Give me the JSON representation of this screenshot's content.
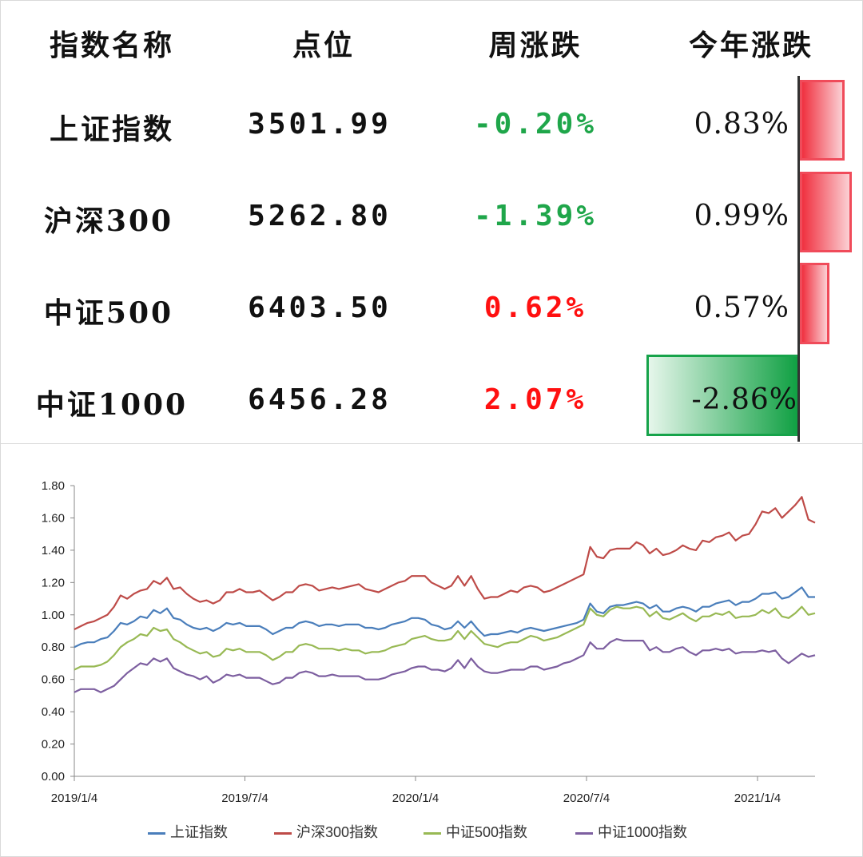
{
  "table": {
    "headers": [
      "指数名称",
      "点位",
      "周涨跌",
      "今年涨跌"
    ],
    "rows": [
      {
        "name": "上证指数",
        "level": "3501.99",
        "week": "-0.20%",
        "week_dir": "neg",
        "ytd": "0.83%",
        "ytd_value": 0.83
      },
      {
        "name": "沪深300",
        "level": "5262.80",
        "week": "-1.39%",
        "week_dir": "neg",
        "ytd": "0.99%",
        "ytd_value": 0.99
      },
      {
        "name": "中证500",
        "level": "6403.50",
        "week": "0.62%",
        "week_dir": "pos",
        "ytd": "0.57%",
        "ytd_value": 0.57
      },
      {
        "name": "中证1000",
        "level": "6456.28",
        "week": "2.07%",
        "week_dir": "pos",
        "ytd": "-2.86%",
        "ytd_value": -2.86
      }
    ],
    "colors": {
      "negative_text": "#1fa64a",
      "positive_text": "#ff1010",
      "bar_red": "#f04b5a",
      "bar_green": "#16a34a"
    }
  },
  "chart_data": {
    "type": "line",
    "x_ticks": [
      "2019/1/4",
      "2019/7/4",
      "2020/1/4",
      "2020/7/4",
      "2021/1/4"
    ],
    "ylim": [
      0,
      1.8
    ],
    "y_ticks": [
      "0.00",
      "0.20",
      "0.40",
      "0.60",
      "0.80",
      "1.00",
      "1.20",
      "1.40",
      "1.60",
      "1.80"
    ],
    "grid": false,
    "legend_position": "bottom",
    "series": [
      {
        "name": "上证指数",
        "color": "#4a7ebb",
        "values": [
          0.8,
          0.82,
          0.83,
          0.83,
          0.85,
          0.86,
          0.9,
          0.95,
          0.94,
          0.96,
          0.99,
          0.98,
          1.03,
          1.01,
          1.04,
          0.98,
          0.97,
          0.94,
          0.92,
          0.91,
          0.92,
          0.9,
          0.92,
          0.95,
          0.94,
          0.95,
          0.93,
          0.93,
          0.93,
          0.91,
          0.88,
          0.9,
          0.92,
          0.92,
          0.95,
          0.96,
          0.95,
          0.93,
          0.94,
          0.94,
          0.93,
          0.94,
          0.94,
          0.94,
          0.92,
          0.92,
          0.91,
          0.92,
          0.94,
          0.95,
          0.96,
          0.98,
          0.98,
          0.97,
          0.94,
          0.93,
          0.91,
          0.92,
          0.96,
          0.92,
          0.96,
          0.91,
          0.87,
          0.88,
          0.88,
          0.89,
          0.9,
          0.89,
          0.91,
          0.92,
          0.91,
          0.9,
          0.91,
          0.92,
          0.93,
          0.94,
          0.95,
          0.97,
          1.07,
          1.02,
          1.01,
          1.05,
          1.06,
          1.06,
          1.07,
          1.08,
          1.07,
          1.04,
          1.06,
          1.02,
          1.02,
          1.04,
          1.05,
          1.04,
          1.02,
          1.05,
          1.05,
          1.07,
          1.08,
          1.09,
          1.06,
          1.08,
          1.08,
          1.1,
          1.13,
          1.13,
          1.14,
          1.1,
          1.11,
          1.14,
          1.17,
          1.11,
          1.11
        ]
      },
      {
        "name": "沪深300指数",
        "color": "#be4b48",
        "values": [
          0.91,
          0.93,
          0.95,
          0.96,
          0.98,
          1.0,
          1.05,
          1.12,
          1.1,
          1.13,
          1.15,
          1.16,
          1.21,
          1.19,
          1.23,
          1.16,
          1.17,
          1.13,
          1.1,
          1.08,
          1.09,
          1.07,
          1.09,
          1.14,
          1.14,
          1.16,
          1.14,
          1.14,
          1.15,
          1.12,
          1.09,
          1.11,
          1.14,
          1.14,
          1.18,
          1.19,
          1.18,
          1.15,
          1.16,
          1.17,
          1.16,
          1.17,
          1.18,
          1.19,
          1.16,
          1.15,
          1.14,
          1.16,
          1.18,
          1.2,
          1.21,
          1.24,
          1.24,
          1.24,
          1.2,
          1.18,
          1.16,
          1.18,
          1.24,
          1.18,
          1.24,
          1.16,
          1.1,
          1.11,
          1.11,
          1.13,
          1.15,
          1.14,
          1.17,
          1.18,
          1.17,
          1.14,
          1.15,
          1.17,
          1.19,
          1.21,
          1.23,
          1.25,
          1.42,
          1.36,
          1.35,
          1.4,
          1.41,
          1.41,
          1.41,
          1.45,
          1.43,
          1.38,
          1.41,
          1.37,
          1.38,
          1.4,
          1.43,
          1.41,
          1.4,
          1.46,
          1.45,
          1.48,
          1.49,
          1.51,
          1.46,
          1.49,
          1.5,
          1.56,
          1.64,
          1.63,
          1.66,
          1.6,
          1.64,
          1.68,
          1.73,
          1.59,
          1.57
        ]
      },
      {
        "name": "中证500指数",
        "color": "#98b954",
        "values": [
          0.66,
          0.68,
          0.68,
          0.68,
          0.69,
          0.71,
          0.75,
          0.8,
          0.83,
          0.85,
          0.88,
          0.87,
          0.92,
          0.9,
          0.91,
          0.85,
          0.83,
          0.8,
          0.78,
          0.76,
          0.77,
          0.74,
          0.75,
          0.79,
          0.78,
          0.79,
          0.77,
          0.77,
          0.77,
          0.75,
          0.72,
          0.74,
          0.77,
          0.77,
          0.81,
          0.82,
          0.81,
          0.79,
          0.79,
          0.79,
          0.78,
          0.79,
          0.78,
          0.78,
          0.76,
          0.77,
          0.77,
          0.78,
          0.8,
          0.81,
          0.82,
          0.85,
          0.86,
          0.87,
          0.85,
          0.84,
          0.84,
          0.85,
          0.9,
          0.85,
          0.9,
          0.86,
          0.82,
          0.81,
          0.8,
          0.82,
          0.83,
          0.83,
          0.85,
          0.87,
          0.86,
          0.84,
          0.85,
          0.86,
          0.88,
          0.9,
          0.92,
          0.94,
          1.04,
          1.0,
          0.99,
          1.03,
          1.05,
          1.04,
          1.04,
          1.05,
          1.04,
          0.99,
          1.02,
          0.98,
          0.97,
          0.99,
          1.01,
          0.98,
          0.96,
          0.99,
          0.99,
          1.01,
          1.0,
          1.02,
          0.98,
          0.99,
          0.99,
          1.0,
          1.03,
          1.01,
          1.04,
          0.99,
          0.98,
          1.01,
          1.05,
          1.0,
          1.01
        ]
      },
      {
        "name": "中证1000指数",
        "color": "#7d5fa0",
        "values": [
          0.52,
          0.54,
          0.54,
          0.54,
          0.52,
          0.54,
          0.56,
          0.6,
          0.64,
          0.67,
          0.7,
          0.69,
          0.73,
          0.71,
          0.73,
          0.67,
          0.65,
          0.63,
          0.62,
          0.6,
          0.62,
          0.58,
          0.6,
          0.63,
          0.62,
          0.63,
          0.61,
          0.61,
          0.61,
          0.59,
          0.57,
          0.58,
          0.61,
          0.61,
          0.64,
          0.65,
          0.64,
          0.62,
          0.62,
          0.63,
          0.62,
          0.62,
          0.62,
          0.62,
          0.6,
          0.6,
          0.6,
          0.61,
          0.63,
          0.64,
          0.65,
          0.67,
          0.68,
          0.68,
          0.66,
          0.66,
          0.65,
          0.67,
          0.72,
          0.67,
          0.73,
          0.68,
          0.65,
          0.64,
          0.64,
          0.65,
          0.66,
          0.66,
          0.66,
          0.68,
          0.68,
          0.66,
          0.67,
          0.68,
          0.7,
          0.71,
          0.73,
          0.75,
          0.83,
          0.79,
          0.79,
          0.83,
          0.85,
          0.84,
          0.84,
          0.84,
          0.84,
          0.78,
          0.8,
          0.77,
          0.77,
          0.79,
          0.8,
          0.77,
          0.75,
          0.78,
          0.78,
          0.79,
          0.78,
          0.79,
          0.76,
          0.77,
          0.77,
          0.77,
          0.78,
          0.77,
          0.78,
          0.73,
          0.7,
          0.73,
          0.76,
          0.74,
          0.75
        ]
      }
    ]
  }
}
